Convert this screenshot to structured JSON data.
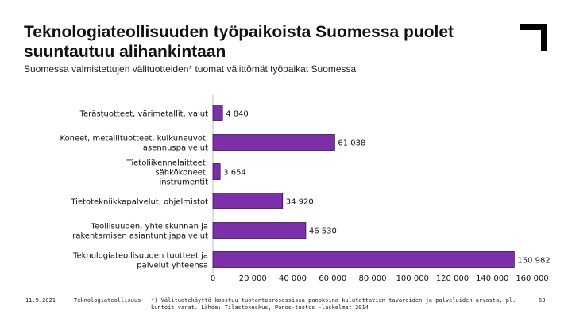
{
  "header": {
    "title": "Teknologiateollisuuden työpaikoista Suomessa puolet suuntautuu alihankintaan",
    "subtitle": "Suomessa valmistettujen välituotteiden* tuomat välittömät työpaikat Suomessa"
  },
  "footer": {
    "date": "11.9.2021",
    "org": "Teknologiateollisuus",
    "note": "*) Välituotekäyttö koostuu tuotantoprosessissa panoksina kulutettavien tavaroiden ja palveluiden arvosta, pl. kuntoit varat. Lähde: Tilastokeskus, Panos-tuotos -laskelmat 2014",
    "page": "63"
  },
  "colors": {
    "bar": "#7b2fa8",
    "bar_stroke": "#3a0f55",
    "logo": "#000000"
  },
  "logo": {
    "icon": "corner-bracket-logo-icon"
  },
  "chart_data": {
    "type": "bar",
    "orientation": "horizontal",
    "categories": [
      [
        "Terästuotteet, värimetallit, valut"
      ],
      [
        "Koneet, metallituotteet, kulkuneuvot,",
        "asennuspalvelut"
      ],
      [
        "Tietoliikennelaitteet,",
        "sähkökoneet,",
        "instrumentit"
      ],
      [
        "Tietotekniikkapalvelut, ohjelmistot"
      ],
      [
        "Teollisuuden, yhteiskunnan ja",
        "rakentamisen asiantuntijapalvelut"
      ],
      [
        "Teknologiateollisuuden tuotteet ja",
        "palvelut yhteensä"
      ]
    ],
    "values": [
      4840,
      61038,
      3654,
      34920,
      46530,
      150982
    ],
    "value_labels": [
      "4 840",
      "61 038",
      "3 654",
      "34 920",
      "46 530",
      "150 982"
    ],
    "xlim": [
      0,
      160000
    ],
    "xticks": [
      0,
      20000,
      40000,
      60000,
      80000,
      100000,
      120000,
      140000,
      160000
    ],
    "xtick_labels": [
      "0",
      "20 000",
      "40 000",
      "60 000",
      "80 000",
      "100 000",
      "120 000",
      "140 000",
      "160 000"
    ],
    "grid": false,
    "legend": "none"
  }
}
